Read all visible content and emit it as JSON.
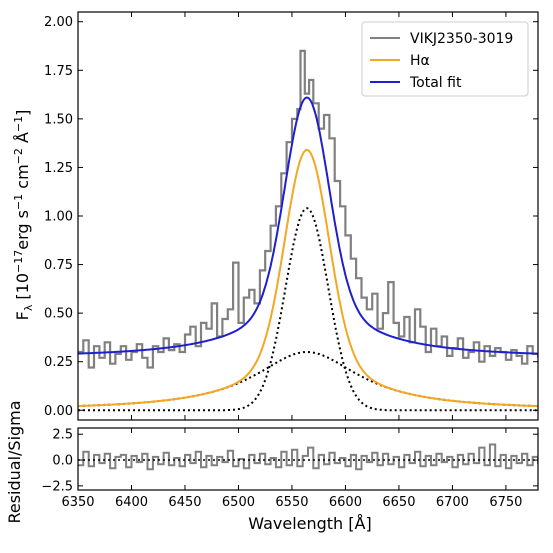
{
  "chart_data": [
    {
      "type": "line",
      "panel": "main",
      "xlim": [
        6350,
        6780
      ],
      "ylim": [
        -0.05,
        2.05
      ],
      "x_ticks": [
        6350,
        6400,
        6450,
        6500,
        6550,
        6600,
        6650,
        6700,
        6750
      ],
      "y_ticks": [
        0.0,
        0.25,
        0.5,
        0.75,
        1.0,
        1.25,
        1.5,
        1.75,
        2.0
      ],
      "y_tick_labels": [
        "0.00",
        "0.25",
        "0.50",
        "0.75",
        "1.00",
        "1.25",
        "1.50",
        "1.75",
        "2.00"
      ],
      "ylabel": "F_λ [10^-17 erg s^-1 cm^-2 Å^-1]",
      "ylabel_parts": {
        "main": "F",
        "sub": "λ",
        "pre": " [10",
        "exp1": "−17",
        "mid1": "erg s",
        "exp2": "−1",
        "mid2": " cm",
        "exp3": "−2",
        "mid3": " Å",
        "exp4": "−1",
        "post": "]"
      },
      "legend_position": "top-right",
      "series": [
        {
          "name": "VIKJ2350-3019",
          "color": "#808080",
          "style": "steps",
          "x": [
            6350,
            6355,
            6360,
            6365,
            6370,
            6375,
            6380,
            6385,
            6390,
            6395,
            6400,
            6405,
            6410,
            6415,
            6420,
            6425,
            6430,
            6435,
            6440,
            6445,
            6450,
            6455,
            6460,
            6465,
            6470,
            6475,
            6480,
            6485,
            6490,
            6495,
            6500,
            6505,
            6510,
            6515,
            6520,
            6525,
            6530,
            6535,
            6540,
            6545,
            6550,
            6555,
            6558,
            6562,
            6566,
            6570,
            6575,
            6580,
            6585,
            6590,
            6595,
            6600,
            6605,
            6610,
            6615,
            6620,
            6625,
            6630,
            6635,
            6640,
            6645,
            6650,
            6655,
            6660,
            6665,
            6670,
            6675,
            6680,
            6685,
            6690,
            6695,
            6700,
            6705,
            6710,
            6715,
            6720,
            6725,
            6730,
            6735,
            6740,
            6745,
            6750,
            6755,
            6760,
            6765,
            6770,
            6775,
            6780
          ],
          "y": [
            0.3,
            0.36,
            0.22,
            0.33,
            0.27,
            0.35,
            0.24,
            0.29,
            0.33,
            0.26,
            0.3,
            0.34,
            0.27,
            0.22,
            0.33,
            0.3,
            0.37,
            0.31,
            0.34,
            0.3,
            0.39,
            0.43,
            0.33,
            0.45,
            0.42,
            0.55,
            0.38,
            0.47,
            0.52,
            0.76,
            0.45,
            0.58,
            0.62,
            0.55,
            0.72,
            0.82,
            0.95,
            1.05,
            1.22,
            1.38,
            1.5,
            1.55,
            1.85,
            1.63,
            1.7,
            1.58,
            1.45,
            1.52,
            1.4,
            1.18,
            1.05,
            0.9,
            0.78,
            0.68,
            0.58,
            0.52,
            0.6,
            0.42,
            0.5,
            0.66,
            0.45,
            0.38,
            0.48,
            0.35,
            0.52,
            0.43,
            0.3,
            0.42,
            0.33,
            0.38,
            0.28,
            0.32,
            0.37,
            0.27,
            0.3,
            0.35,
            0.25,
            0.33,
            0.28,
            0.32,
            0.3,
            0.26,
            0.31,
            0.28,
            0.24,
            0.33,
            0.29,
            0.27
          ]
        },
        {
          "name": "Hα",
          "color": "#f5a623",
          "style": "line",
          "model": {
            "narrow_amp": 1.04,
            "broad_amp": 0.3,
            "center": 6564,
            "narrow_sigma": 20,
            "broad_hwhm": 60
          }
        },
        {
          "name": "Total fit",
          "color": "#1f1fd0",
          "style": "line",
          "model": {
            "continuum": 0.27,
            "narrow_amp": 1.04,
            "broad_amp": 0.3,
            "center": 6564,
            "narrow_sigma": 20,
            "broad_hwhm": 60
          }
        },
        {
          "name": "",
          "color": "#000000",
          "style": "dotted",
          "component": "narrow"
        },
        {
          "name": "",
          "color": "#000000",
          "style": "dotted",
          "component": "broad"
        }
      ]
    },
    {
      "type": "line",
      "panel": "residual",
      "xlim": [
        6350,
        6780
      ],
      "ylim": [
        -2.9,
        3.1
      ],
      "x_ticks": [
        6350,
        6400,
        6450,
        6500,
        6550,
        6600,
        6650,
        6700,
        6750
      ],
      "x_tick_labels": [
        "6350",
        "6400",
        "6450",
        "6500",
        "6550",
        "6600",
        "6650",
        "6700",
        "6750"
      ],
      "y_ticks": [
        -2.5,
        0.0,
        2.5
      ],
      "y_tick_labels": [
        "−2.5",
        "0.0",
        "2.5"
      ],
      "xlabel": "Wavelength [Å]",
      "ylabel": "Residual/Sigma",
      "series": [
        {
          "name": "",
          "color": "#808080",
          "style": "steps",
          "x": [
            6350,
            6355,
            6360,
            6365,
            6370,
            6375,
            6380,
            6385,
            6390,
            6395,
            6400,
            6405,
            6410,
            6415,
            6420,
            6425,
            6430,
            6435,
            6440,
            6445,
            6450,
            6455,
            6460,
            6465,
            6470,
            6475,
            6480,
            6485,
            6490,
            6495,
            6500,
            6505,
            6510,
            6515,
            6520,
            6525,
            6530,
            6535,
            6540,
            6545,
            6550,
            6555,
            6560,
            6565,
            6570,
            6575,
            6580,
            6585,
            6590,
            6595,
            6600,
            6605,
            6610,
            6615,
            6620,
            6625,
            6630,
            6635,
            6640,
            6645,
            6650,
            6655,
            6660,
            6665,
            6670,
            6675,
            6680,
            6685,
            6690,
            6695,
            6700,
            6705,
            6710,
            6715,
            6720,
            6725,
            6730,
            6735,
            6740,
            6745,
            6750,
            6755,
            6760,
            6765,
            6770,
            6775,
            6780
          ],
          "y": [
            -0.5,
            0.8,
            -0.6,
            0.5,
            -0.3,
            0.6,
            -0.8,
            0.3,
            0.5,
            -0.7,
            0.4,
            -0.2,
            0.6,
            -0.9,
            0.3,
            -0.4,
            0.7,
            -0.5,
            0.2,
            -0.6,
            0.5,
            -0.3,
            0.8,
            -0.7,
            0.4,
            -0.5,
            0.3,
            -0.2,
            0.9,
            -0.6,
            0.1,
            -0.8,
            0.5,
            -0.3,
            0.6,
            -0.4,
            0.2,
            -0.7,
            0.8,
            -0.5,
            1.0,
            -0.6,
            0.4,
            1.2,
            -0.8,
            0.5,
            -0.4,
            0.7,
            -0.3,
            0.2,
            -0.6,
            0.5,
            -0.9,
            0.4,
            -0.2,
            0.7,
            -0.5,
            0.6,
            -0.4,
            0.3,
            -0.7,
            0.5,
            -0.3,
            0.8,
            -0.6,
            0.4,
            -0.5,
            0.6,
            -0.2,
            0.3,
            -0.7,
            0.5,
            -0.4,
            0.6,
            -0.3,
            1.2,
            -0.5,
            1.5,
            -0.6,
            0.5,
            -0.8,
            0.4,
            -0.3,
            0.6,
            -0.5,
            0.3,
            -0.4
          ]
        },
        {
          "name": "",
          "color": "#000000",
          "style": "dotted",
          "constant": 0
        }
      ]
    }
  ]
}
